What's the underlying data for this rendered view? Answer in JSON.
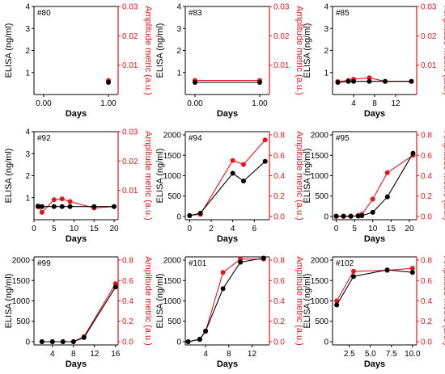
{
  "colors": {
    "elisa": "#000000",
    "amplitude": "#e8141b"
  },
  "chart_data": [
    {
      "type": "line",
      "panel": "#80",
      "xlabel": "Days",
      "ylabel": "ELISA (ng/ml)",
      "y2label": "Amplitude metric (a.u.)",
      "xlim": [
        -0.15,
        1.15
      ],
      "xticks": [
        0,
        1
      ],
      "xtick_labels": [
        "0.00",
        "1.00"
      ],
      "ylim": [
        0,
        4
      ],
      "yticks": [
        1,
        2,
        3,
        4
      ],
      "ytick_labels": [
        "1",
        "2",
        "3",
        "4"
      ],
      "y2lim": [
        0,
        0.03
      ],
      "y2ticks": [
        0.01,
        0.02,
        0.03
      ],
      "y2tick_labels": [
        "0.01",
        "0.02",
        "0.03"
      ],
      "series": [
        {
          "axis": "left",
          "x": [
            1
          ],
          "y": [
            0.55
          ]
        },
        {
          "axis": "right",
          "x": [
            1
          ],
          "y": [
            0.0048
          ]
        }
      ]
    },
    {
      "type": "line",
      "panel": "#83",
      "xlabel": "Days",
      "ylabel": "ELISA (ng/ml)",
      "y2label": "Amplitude metric (a.u.)",
      "xlim": [
        -0.15,
        1.15
      ],
      "xticks": [
        0,
        1
      ],
      "xtick_labels": [
        "0.00",
        "1.00"
      ],
      "ylim": [
        0,
        4
      ],
      "yticks": [
        1,
        2,
        3,
        4
      ],
      "ytick_labels": [
        "1",
        "2",
        "3",
        "4"
      ],
      "y2lim": [
        0,
        0.03
      ],
      "y2ticks": [
        0.01,
        0.02,
        0.03
      ],
      "y2tick_labels": [
        "0.01",
        "0.02",
        "0.03"
      ],
      "series": [
        {
          "axis": "left",
          "x": [
            0,
            1
          ],
          "y": [
            0.55,
            0.55
          ]
        },
        {
          "axis": "right",
          "x": [
            0,
            1
          ],
          "y": [
            0.0048,
            0.0048
          ]
        }
      ]
    },
    {
      "type": "line",
      "panel": "#85",
      "xlabel": "Days",
      "ylabel": "ELISA (ng/ml)",
      "y2label": "Amplitude metric (a.u.)",
      "xlim": [
        0,
        16
      ],
      "xticks": [
        4,
        8,
        12
      ],
      "xtick_labels": [
        "4",
        "8",
        "12"
      ],
      "ylim": [
        0,
        4
      ],
      "yticks": [
        1,
        2,
        3,
        4
      ],
      "ytick_labels": [
        "1",
        "2",
        "3",
        "4"
      ],
      "y2lim": [
        0,
        0.03
      ],
      "y2ticks": [
        0.01,
        0.02,
        0.03
      ],
      "y2tick_labels": [
        "0.01",
        "0.02",
        "0.03"
      ],
      "series": [
        {
          "axis": "left",
          "x": [
            1,
            3,
            4,
            7,
            10,
            15
          ],
          "y": [
            0.55,
            0.6,
            0.6,
            0.6,
            0.6,
            0.6
          ]
        },
        {
          "axis": "right",
          "x": [
            1,
            3,
            4,
            7,
            10,
            15
          ],
          "y": [
            0.0044,
            0.0048,
            0.0052,
            0.0057,
            0.0045,
            0.0045
          ]
        }
      ]
    },
    {
      "type": "line",
      "panel": "#92",
      "xlabel": "Days",
      "ylabel": "ELISA (ng/ml)",
      "y2label": "Amplitude metric (a.u.)",
      "xlim": [
        0,
        21
      ],
      "xticks": [
        0,
        5,
        10,
        15,
        20
      ],
      "xtick_labels": [
        "0",
        "5",
        "10",
        "15",
        "20"
      ],
      "ylim": [
        0,
        4
      ],
      "yticks": [
        1,
        2,
        3,
        4
      ],
      "ytick_labels": [
        "1",
        "2",
        "3",
        "4"
      ],
      "y2lim": [
        0,
        0.03
      ],
      "y2ticks": [
        0.01,
        0.02,
        0.03
      ],
      "y2tick_labels": [
        "0.01",
        "0.02",
        "0.03"
      ],
      "series": [
        {
          "axis": "left",
          "x": [
            1,
            2,
            5,
            7,
            9,
            15,
            20
          ],
          "y": [
            0.6,
            0.6,
            0.6,
            0.6,
            0.6,
            0.6,
            0.6
          ]
        },
        {
          "axis": "right",
          "x": [
            1,
            2,
            5,
            7,
            9,
            15,
            20
          ],
          "y": [
            0.0047,
            0.0025,
            0.0068,
            0.0071,
            0.0062,
            0.004,
            0.0045
          ]
        }
      ]
    },
    {
      "type": "line",
      "panel": "#94",
      "xlabel": "Days",
      "ylabel": "ELISA (ng/ml)",
      "y2label": "Amplitude metric (a.u.)",
      "xlim": [
        -0.4,
        7.4
      ],
      "xticks": [
        0,
        2,
        4,
        6
      ],
      "xtick_labels": [
        "0",
        "2",
        "4",
        "6"
      ],
      "ylim": [
        -80,
        2080
      ],
      "yticks": [
        0,
        500,
        1000,
        1500,
        2000
      ],
      "ytick_labels": [
        "0",
        "500",
        "1000",
        "1500",
        "2000"
      ],
      "y2lim": [
        -0.032,
        0.832
      ],
      "y2ticks": [
        0,
        0.2,
        0.4,
        0.6,
        0.8
      ],
      "y2tick_labels": [
        "0.0",
        "0.2",
        "0.4",
        "0.6",
        "0.8"
      ],
      "series": [
        {
          "axis": "left",
          "x": [
            0,
            1,
            4,
            5,
            7
          ],
          "y": [
            20,
            80,
            1060,
            870,
            1350
          ]
        },
        {
          "axis": "right",
          "x": [
            0,
            1,
            4,
            5,
            7
          ],
          "y": [
            0.01,
            0.02,
            0.55,
            0.51,
            0.75
          ]
        }
      ]
    },
    {
      "type": "line",
      "panel": "#95",
      "xlabel": "Days",
      "ylabel": "ELISA (ng/ml)",
      "y2label": "Amplitude metric (a.u.)",
      "xlim": [
        -1,
        22
      ],
      "xticks": [
        0,
        5,
        10,
        15,
        20
      ],
      "xtick_labels": [
        "0",
        "5",
        "10",
        "15",
        "20"
      ],
      "ylim": [
        -80,
        2080
      ],
      "yticks": [
        0,
        500,
        1000,
        1500,
        2000
      ],
      "ytick_labels": [
        "0",
        "500",
        "1000",
        "1500",
        "2000"
      ],
      "y2lim": [
        -0.032,
        0.832
      ],
      "y2ticks": [
        0,
        0.2,
        0.4,
        0.6,
        0.8
      ],
      "y2tick_labels": [
        "0.0",
        "0.2",
        "0.4",
        "0.6",
        "0.8"
      ],
      "series": [
        {
          "axis": "left",
          "x": [
            0,
            2,
            4,
            6,
            7,
            10,
            14,
            21
          ],
          "y": [
            10,
            10,
            10,
            10,
            20,
            100,
            480,
            1550
          ]
        },
        {
          "axis": "right",
          "x": [
            0,
            2,
            4,
            6,
            7,
            10,
            14,
            21
          ],
          "y": [
            0.0,
            0.0,
            0.0,
            0.01,
            0.02,
            0.17,
            0.43,
            0.6
          ]
        }
      ]
    },
    {
      "type": "line",
      "panel": "#99",
      "xlabel": "Days",
      "ylabel": "ELISA (ng/ml)",
      "y2label": "Amplitude metric (a.u.)",
      "xlim": [
        0.5,
        16.5
      ],
      "xticks": [
        4,
        8,
        12,
        16
      ],
      "xtick_labels": [
        "4",
        "8",
        "12",
        "16"
      ],
      "ylim": [
        -80,
        2080
      ],
      "yticks": [
        0,
        500,
        1000,
        1500,
        2000
      ],
      "ytick_labels": [
        "0",
        "500",
        "1000",
        "1500",
        "2000"
      ],
      "y2lim": [
        -0.032,
        0.832
      ],
      "y2ticks": [
        0,
        0.2,
        0.4,
        0.6,
        0.8
      ],
      "y2tick_labels": [
        "0.0",
        "0.2",
        "0.4",
        "0.6",
        "0.8"
      ],
      "series": [
        {
          "axis": "left",
          "x": [
            2,
            4,
            6,
            8,
            10,
            16
          ],
          "y": [
            0,
            0,
            0,
            0,
            100,
            1340
          ]
        },
        {
          "axis": "right",
          "x": [
            2,
            4,
            6,
            8,
            10,
            16
          ],
          "y": [
            0.0,
            0.0,
            0.0,
            0.0,
            0.05,
            0.57
          ]
        }
      ]
    },
    {
      "type": "line",
      "panel": "#101",
      "xlabel": "Days",
      "ylabel": "ELISA (ng/ml)",
      "y2label": "Amplitude metric (a.u.)",
      "xlim": [
        0.5,
        15
      ],
      "xticks": [
        4,
        8,
        12
      ],
      "xtick_labels": [
        "4",
        "8",
        "12"
      ],
      "ylim": [
        -80,
        2080
      ],
      "yticks": [
        0,
        500,
        1000,
        1500,
        2000
      ],
      "ytick_labels": [
        "0",
        "500",
        "1000",
        "1500",
        "2000"
      ],
      "y2lim": [
        -0.032,
        0.832
      ],
      "y2ticks": [
        0,
        0.2,
        0.4,
        0.6,
        0.8
      ],
      "y2tick_labels": [
        "0.0",
        "0.2",
        "0.4",
        "0.6",
        "0.8"
      ],
      "series": [
        {
          "axis": "left",
          "x": [
            1,
            3,
            4,
            7,
            10,
            14
          ],
          "y": [
            0,
            60,
            260,
            1300,
            1950,
            2050
          ]
        },
        {
          "axis": "right",
          "x": [
            1,
            3,
            4,
            7,
            10,
            14
          ],
          "y": [
            0.0,
            0.02,
            0.1,
            0.68,
            0.81,
            0.81
          ]
        }
      ]
    },
    {
      "type": "line",
      "panel": "#102",
      "xlabel": "Days",
      "ylabel": "ELISA (ng/ml)",
      "y2label": "Amplitude metric (a.u.)",
      "xlim": [
        0.5,
        10.5
      ],
      "xticks": [
        2.5,
        5,
        7.5,
        10
      ],
      "xtick_labels": [
        "2.5",
        "5.0",
        "7.5",
        "10.0"
      ],
      "ylim": [
        -80,
        2080
      ],
      "yticks": [
        0,
        500,
        1000,
        1500,
        2000
      ],
      "ytick_labels": [
        "0",
        "500",
        "1000",
        "1500",
        "2000"
      ],
      "y2lim": [
        -0.032,
        0.832
      ],
      "y2ticks": [
        0,
        0.2,
        0.4,
        0.6,
        0.8
      ],
      "y2tick_labels": [
        "0.0",
        "0.2",
        "0.4",
        "0.6",
        "0.8"
      ],
      "series": [
        {
          "axis": "left",
          "x": [
            1,
            3,
            7,
            10
          ],
          "y": [
            900,
            1600,
            1760,
            1700
          ]
        },
        {
          "axis": "right",
          "x": [
            1,
            3,
            7,
            10
          ],
          "y": [
            0.4,
            0.69,
            0.7,
            0.72
          ]
        }
      ]
    }
  ]
}
